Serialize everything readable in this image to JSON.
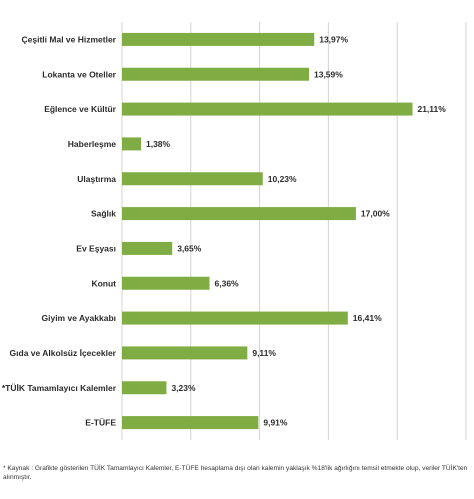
{
  "chart_data": {
    "type": "bar",
    "orientation": "horizontal",
    "categories": [
      "Çeşitli Mal ve Hizmetler",
      "Lokanta ve Oteller",
      "Eğlence ve Kültür",
      "Haberleşme",
      "Ulaştırma",
      "Sağlık",
      "Ev Eşyası",
      "Konut",
      "Giyim ve Ayakkabı",
      "Gıda ve Alkolsüz İçecekler",
      "*TÜİK Tamamlayıcı Kalemler",
      "E-TÜFE"
    ],
    "values": [
      13.97,
      13.59,
      21.11,
      1.38,
      10.23,
      17.0,
      3.65,
      6.36,
      16.41,
      9.11,
      3.23,
      9.91
    ],
    "value_labels": [
      "13,97%",
      "13,59%",
      "21,11%",
      "1,38%",
      "10,23%",
      "17,00%",
      "3,65%",
      "6,36%",
      "16,41%",
      "9,11%",
      "3,23%",
      "9,91%"
    ],
    "xlim": [
      0,
      25
    ],
    "grid": true,
    "bar_color": "#7fad43",
    "grid_color": "#d4d4d4",
    "title": "",
    "xlabel": "",
    "ylabel": ""
  },
  "footnote": "*  Kaynak : Grafikte gösterilen TÜİK Tamamlayıcı Kalemler, E-TÜFE hesaplama dışı olan kalemin yaklaşık %18'lik ağırlığını temsil etmekte olup, veriler TÜİK'ten alınmıştır."
}
